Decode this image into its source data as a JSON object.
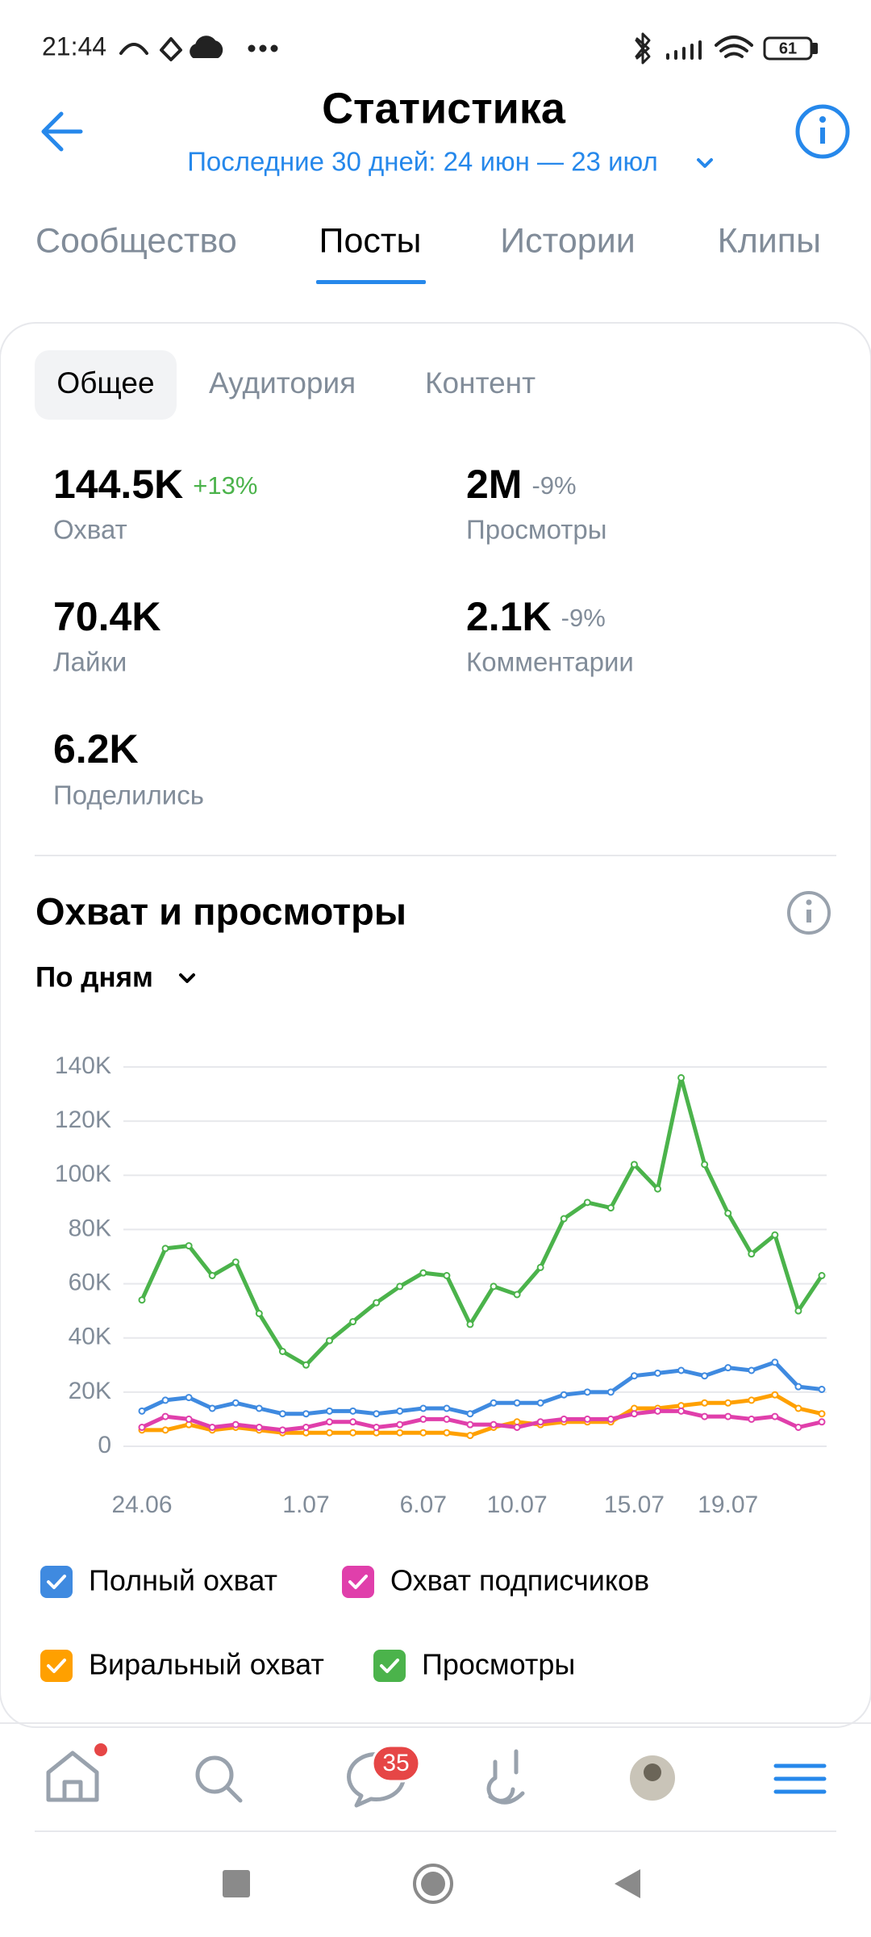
{
  "status_bar": {
    "time": "21:44",
    "battery": "61"
  },
  "header": {
    "title": "Статистика",
    "period": "Последние 30 дней: 24 июн — 23 июл"
  },
  "tabs": [
    "Сообщество",
    "Посты",
    "Истории",
    "Клипы"
  ],
  "subtabs": [
    "Общее",
    "Аудитория",
    "Контент"
  ],
  "stats": [
    {
      "value": "144.5K",
      "change": "+13%",
      "label": "Охват"
    },
    {
      "value": "2M",
      "change": "-9%",
      "label": "Просмотры"
    },
    {
      "value": "70.4K",
      "label": "Лайки"
    },
    {
      "value": "2.1K",
      "change": "-9%",
      "label": "Комментарии"
    },
    {
      "value": "6.2K",
      "label": "Поделились"
    }
  ],
  "chart_data": {
    "type": "line",
    "title": "Охват и просмотры",
    "period_selector": "По дням",
    "categories": [
      "24.06",
      null,
      null,
      null,
      null,
      null,
      null,
      "1.07",
      null,
      null,
      null,
      null,
      "6.07",
      null,
      null,
      null,
      "10.07",
      null,
      null,
      null,
      null,
      "15.07",
      null,
      null,
      null,
      "19.07",
      null,
      null,
      null,
      null
    ],
    "series": [
      {
        "name": "Полный охват",
        "color": "#3f8ae0",
        "values": [
          13000,
          17000,
          18000,
          14000,
          16000,
          14000,
          12000,
          12000,
          13000,
          13000,
          12000,
          13000,
          14000,
          14000,
          12000,
          16000,
          16000,
          16000,
          19000,
          20000,
          20000,
          26000,
          27000,
          28000,
          26000,
          29000,
          28000,
          31000,
          22000,
          21000
        ]
      },
      {
        "name": "Охват подписчиков",
        "color": "#e03fab",
        "values": [
          7000,
          11000,
          10000,
          7000,
          8000,
          7000,
          6000,
          7000,
          9000,
          9000,
          7000,
          8000,
          10000,
          10000,
          8000,
          8000,
          7000,
          9000,
          10000,
          10000,
          10000,
          12000,
          13000,
          13000,
          11000,
          11000,
          10000,
          11000,
          7000,
          9000
        ]
      },
      {
        "name": "Виральный охват",
        "color": "#ffa000",
        "values": [
          6000,
          6000,
          8000,
          6000,
          7000,
          6000,
          5000,
          5000,
          5000,
          5000,
          5000,
          5000,
          5000,
          5000,
          4000,
          7000,
          9000,
          8000,
          9000,
          9000,
          9000,
          14000,
          14000,
          15000,
          16000,
          16000,
          17000,
          19000,
          14000,
          12000
        ]
      },
      {
        "name": "Просмотры",
        "color": "#4bb34b",
        "values": [
          54000,
          73000,
          74000,
          63000,
          68000,
          49000,
          35000,
          30000,
          39000,
          46000,
          53000,
          59000,
          64000,
          63000,
          45000,
          59000,
          56000,
          66000,
          84000,
          90000,
          88000,
          104000,
          95000,
          136000,
          104000,
          86000,
          71000,
          78000,
          50000,
          63000
        ]
      }
    ],
    "ylim": [
      0,
      140000
    ],
    "yticks": [
      0,
      {
        "value": 20000,
        "label": "20K"
      },
      {
        "value": 40000,
        "label": "40K"
      },
      {
        "value": 60000,
        "label": "60K"
      },
      {
        "value": 80000,
        "label": "80K"
      },
      {
        "value": 100000,
        "label": "100K"
      },
      {
        "value": 120000,
        "label": "120K"
      },
      {
        "value": 140000,
        "label": "140K"
      }
    ],
    "grid": true
  },
  "bottom_nav": {
    "badge": "35"
  }
}
